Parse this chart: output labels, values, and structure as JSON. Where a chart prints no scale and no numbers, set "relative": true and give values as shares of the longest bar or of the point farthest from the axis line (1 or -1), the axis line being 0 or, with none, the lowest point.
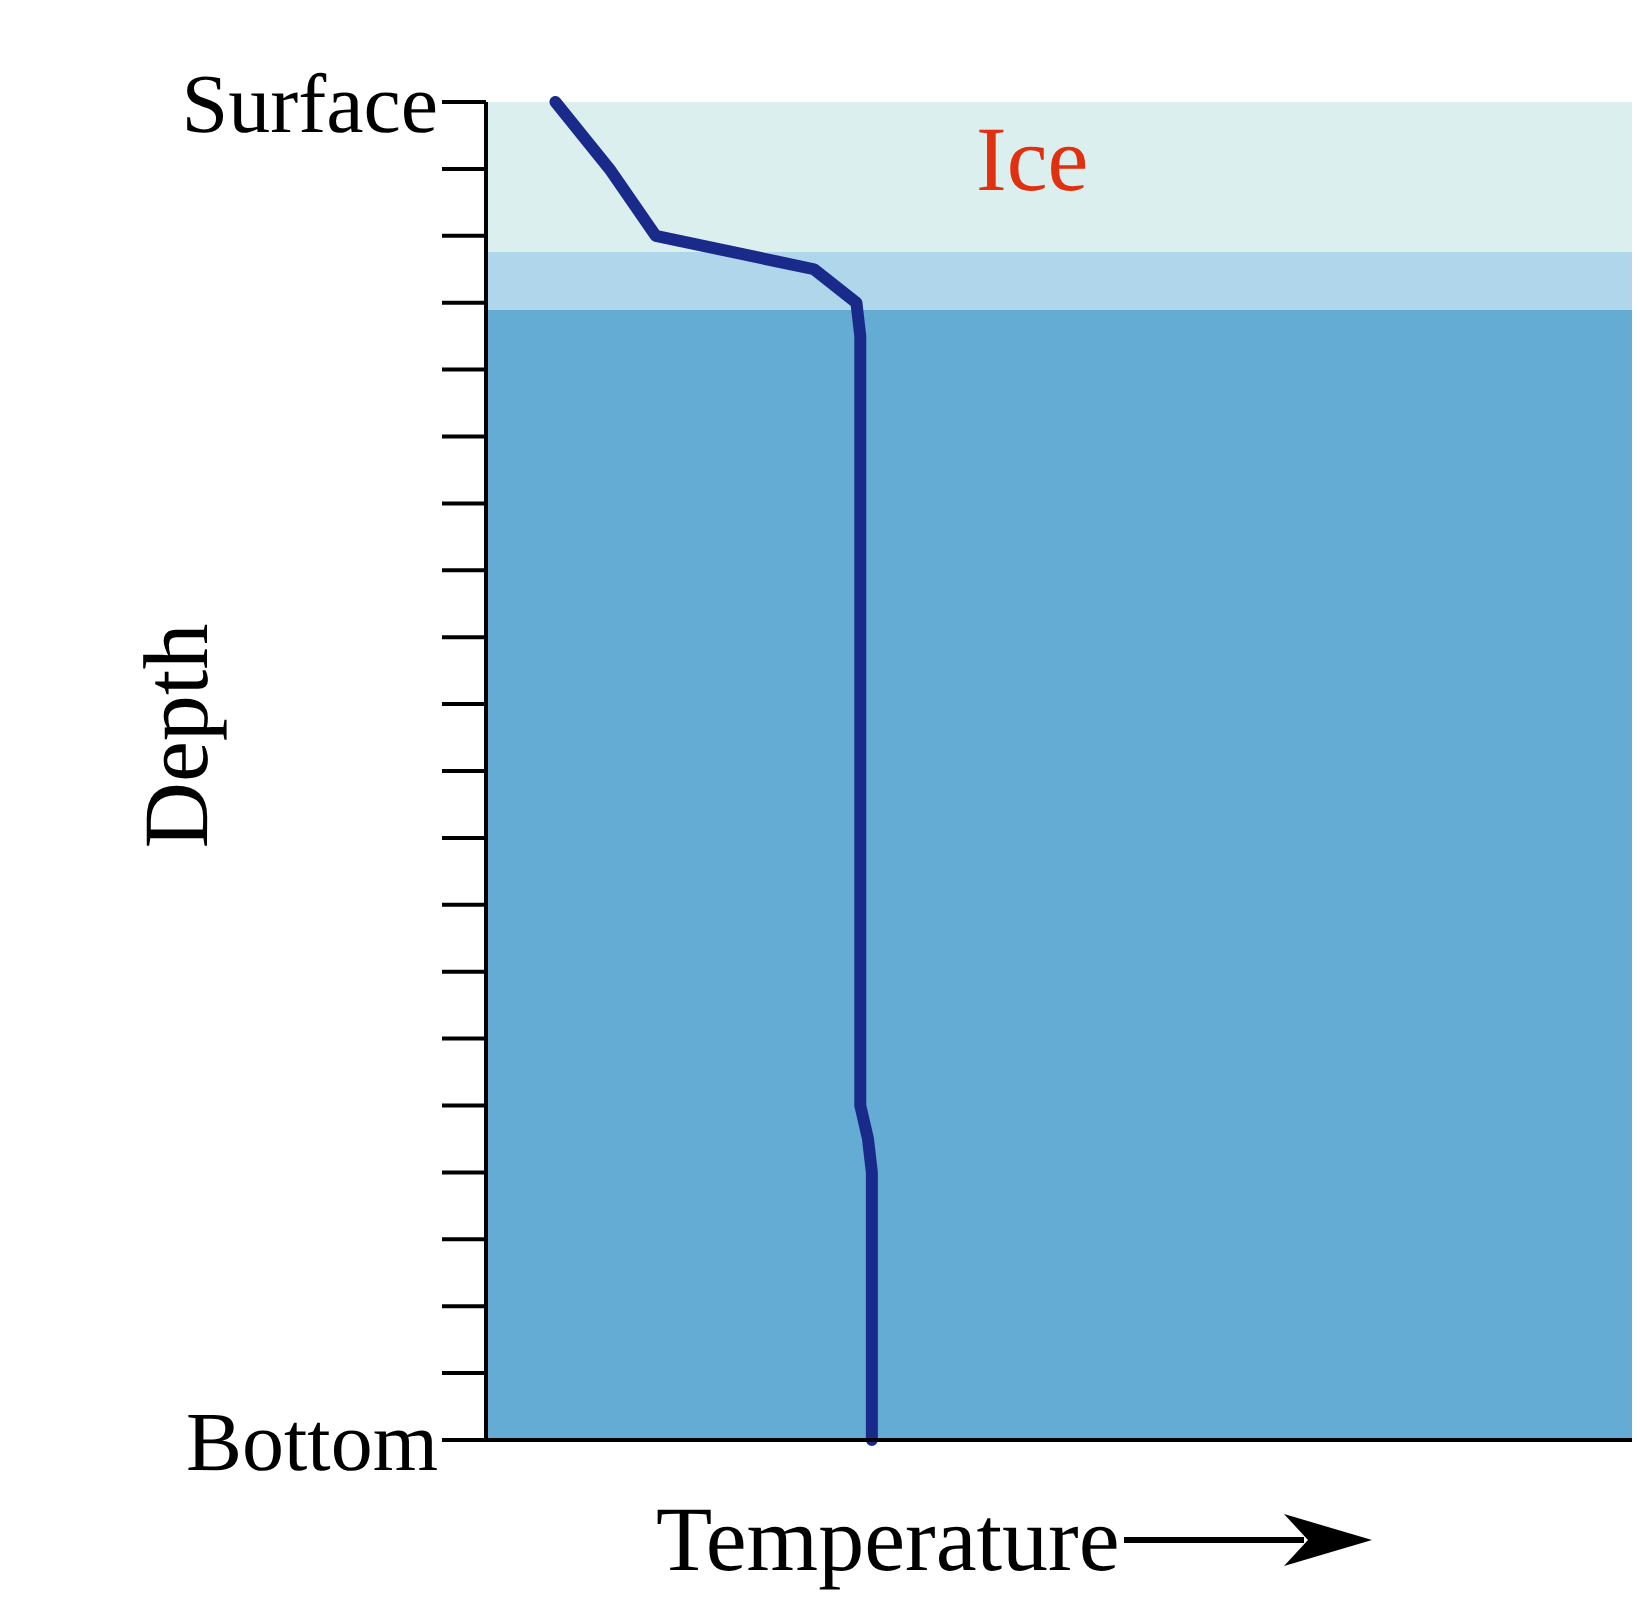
{
  "chart_data": {
    "type": "line",
    "orientation": "horizontal",
    "relative": true,
    "xlabel": "Temperature",
    "ylabel": "Depth",
    "tick_labels": "y",
    "annotations": [
      "Ice"
    ],
    "categories": [
      "Surface",
      null,
      null,
      null,
      null,
      null,
      null,
      null,
      null,
      null,
      null,
      null,
      null,
      null,
      null,
      null,
      null,
      null,
      null,
      null,
      null,
      null,
      null,
      null,
      null,
      null,
      null,
      null,
      null,
      null,
      null,
      null,
      null,
      null,
      null,
      null,
      null,
      null,
      null,
      null,
      "Bottom"
    ],
    "series": [
      {
        "color": "#1a2a8a",
        "values": [
          0.18,
          0.25,
          0.32,
          0.38,
          0.44,
          0.85,
          0.96,
          0.97,
          0.97,
          0.97,
          0.97,
          0.97,
          0.97,
          0.97,
          0.97,
          0.97,
          0.97,
          0.97,
          0.97,
          0.97,
          0.97,
          0.97,
          0.97,
          0.97,
          0.97,
          0.97,
          0.97,
          0.97,
          0.97,
          0.97,
          0.97,
          0.99,
          1,
          1,
          1,
          1,
          1,
          1,
          1,
          1,
          1
        ]
      }
    ],
    "marker": "none",
    "line_style": "solid",
    "legend": false
  }
}
